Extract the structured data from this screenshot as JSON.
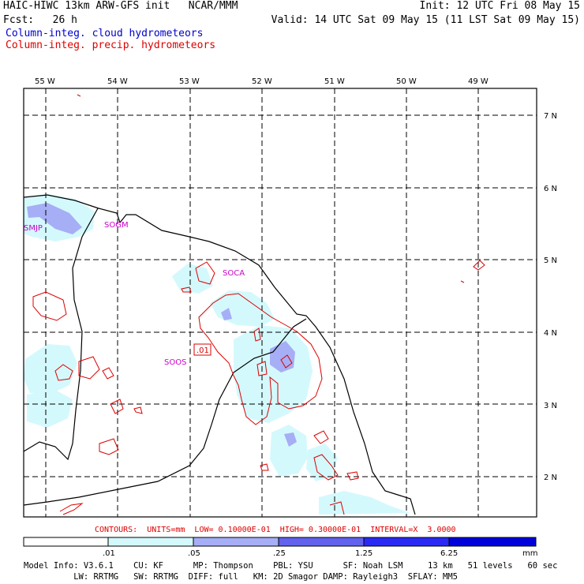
{
  "header": {
    "title": "HAIC-HIWC 13km ARW-GFS init   NCAR/MMM",
    "forecast": "Fcst:   26 h",
    "init": "Init: 12 UTC Fri 08 May 15",
    "valid": "Valid: 14 UTC Sat 09 May 15 (11 LST Sat 09 May 15)",
    "field_cloud": "Column-integ. cloud hydrometeors",
    "field_precip": "Column-integ. precip. hydrometeors"
  },
  "map": {
    "lon_labels": [
      "55 W",
      "54 W",
      "53 W",
      "52 W",
      "51 W",
      "50 W",
      "49 W"
    ],
    "lat_labels": [
      "7 N",
      "6 N",
      "5 N",
      "4 N",
      "3 N",
      "2 N"
    ],
    "stations": [
      "SMJP",
      "SOGM",
      "SOCA",
      "SOOS"
    ],
    "contour_label": ".01"
  },
  "contours_line": "CONTOURS:  UNITS=mm  LOW= 0.10000E-01  HIGH= 0.30000E-01  INTERVAL=X  3.0000",
  "colorbar": {
    "tick_labels": [
      ".01",
      ".05",
      ".25",
      "1.25",
      "6.25"
    ],
    "units": "mm",
    "colors": [
      "#ffffff",
      "#d4f9fd",
      "#a6aef5",
      "#6262ee",
      "#0000ff",
      "#0000dd"
    ]
  },
  "footer": {
    "line1": "Model Info: V3.6.1    CU: KF      MP: Thompson    PBL: YSU      SF: Noah LSM     13 km   51 levels   60 sec",
    "line2": "          LW: RRTMG   SW: RRTMG  DIFF: full   KM: 2D Smagor DAMP: Rayleigh3  SFLAY: MM5"
  }
}
